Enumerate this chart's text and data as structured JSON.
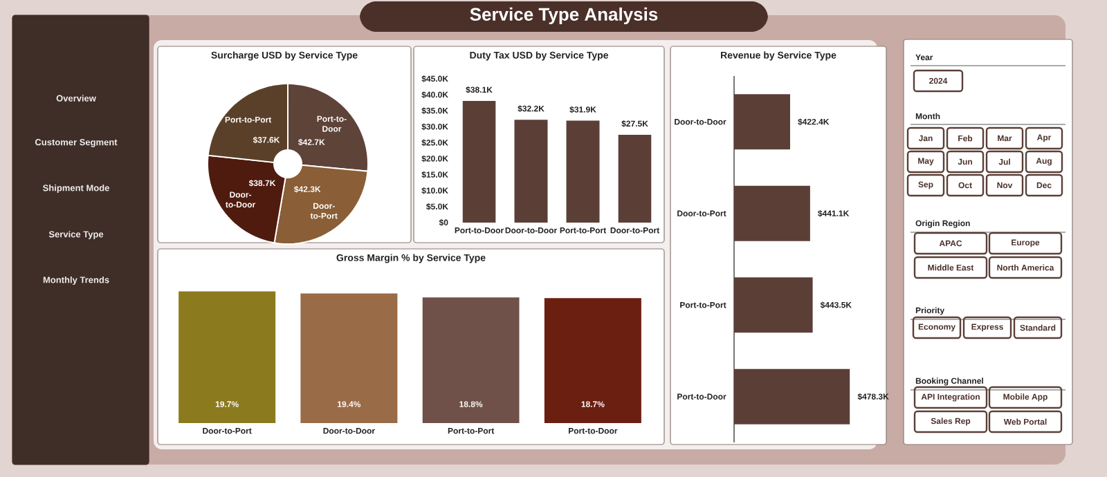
{
  "chart_data": [
    {
      "type": "other",
      "title": "Service Type Analysis",
      "annotations": [
        "Overview",
        "Customer Segment",
        "Shipment Mode",
        "Service Type",
        "Monthly Trends"
      ]
    },
    {
      "type": "donut",
      "title": "Surcharge USD by Service Type",
      "categories": [
        "Port-to-Door",
        "Door-to-Port",
        "Door-to-Door",
        "Port-to-Port"
      ],
      "values": [
        42700,
        42300,
        38700,
        37600
      ],
      "value_labels": [
        "$42.7K",
        "$42.3K",
        "$38.7K",
        "$37.6K"
      ],
      "colors": [
        "#5e4338",
        "#8a5e36",
        "#4f1b0f",
        "#5b4029"
      ]
    },
    {
      "type": "bar",
      "title": "Duty Tax USD by Service Type",
      "categories": [
        "Port-to-Door",
        "Door-to-Door",
        "Port-to-Port",
        "Door-to-Port"
      ],
      "values": [
        38100,
        32200,
        31900,
        27500
      ],
      "value_labels": [
        "$38.1K",
        "$32.2K",
        "$31.9K",
        "$27.5K"
      ],
      "color": "#5b3f36",
      "ylim": [
        0,
        45000
      ],
      "yticks": [
        {
          "value": 0,
          "label": "$0"
        },
        {
          "value": 5000,
          "label": "$5.0K"
        },
        {
          "value": 10000,
          "label": "$10.0K"
        },
        {
          "value": 15000,
          "label": "$15.0K"
        },
        {
          "value": 20000,
          "label": "$20.0K"
        },
        {
          "value": 25000,
          "label": "$25.0K"
        },
        {
          "value": 30000,
          "label": "$30.0K"
        },
        {
          "value": 35000,
          "label": "$35.0K"
        },
        {
          "value": 40000,
          "label": "$40.0K"
        },
        {
          "value": 45000,
          "label": "$45.0K"
        }
      ]
    },
    {
      "type": "bar",
      "orientation": "horizontal",
      "title": "Revenue by Service Type",
      "categories": [
        "Door-to-Door",
        "Door-to-Port",
        "Port-to-Port",
        "Port-to-Door"
      ],
      "values": [
        422400,
        441100,
        443500,
        478300
      ],
      "value_labels": [
        "$422.4K",
        "$441.1K",
        "$443.5K",
        "$478.3K"
      ],
      "color": "#5b3f36",
      "xlim": [
        370000,
        480000
      ]
    },
    {
      "type": "bar",
      "title": "Gross Margin % by Service Type",
      "categories": [
        "Door-to-Port",
        "Door-to-Door",
        "Port-to-Port",
        "Port-to-Door"
      ],
      "values": [
        19.7,
        19.4,
        18.8,
        18.7
      ],
      "value_labels": [
        "19.7%",
        "19.4%",
        "18.8%",
        "18.7%"
      ],
      "colors": [
        "#8c7a1e",
        "#9a6b47",
        "#6f5149",
        "#6a1f10"
      ]
    },
    {
      "type": "other",
      "annotations": [
        "Year",
        "2024",
        "Month",
        "Jan",
        "Feb",
        "Mar",
        "Apr",
        "May",
        "Jun",
        "Jul",
        "Aug",
        "Sep",
        "Oct",
        "Nov",
        "Dec",
        "Origin Region",
        "APAC",
        "Europe",
        "Middle East",
        "North America",
        "Priority",
        "Economy",
        "Express",
        "Standard",
        "Booking Channel",
        "API Integration",
        "Mobile App",
        "Sales Rep",
        "Web Portal"
      ]
    }
  ]
}
